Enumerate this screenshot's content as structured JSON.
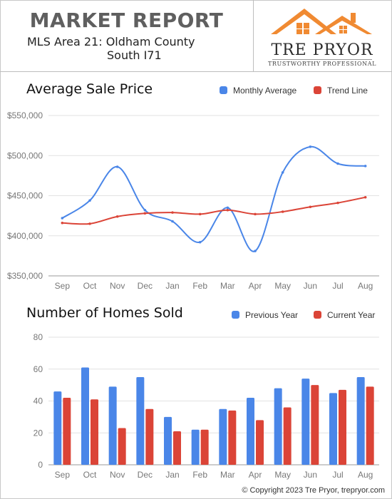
{
  "header": {
    "title": "MARKET REPORT",
    "area_line1": "MLS Area 21: Oldham County",
    "area_line2": "South I71"
  },
  "logo": {
    "name": "TRE PRYOR",
    "tagline": "TRUSTWORTHY PROFESSIONAL",
    "roof_color": "#f08a32"
  },
  "chart_data": [
    {
      "type": "line",
      "title": "Average Sale Price",
      "categories": [
        "Sep",
        "Oct",
        "Nov",
        "Dec",
        "Jan",
        "Feb",
        "Mar",
        "Apr",
        "May",
        "Jun",
        "Jul",
        "Aug"
      ],
      "series": [
        {
          "name": "Monthly Average",
          "color": "#4a86e8",
          "values": [
            422000,
            444000,
            486000,
            432000,
            418000,
            392000,
            435000,
            381000,
            479000,
            511000,
            490000,
            487000
          ]
        },
        {
          "name": "Trend Line",
          "color": "#db4437",
          "values": [
            416000,
            415000,
            424000,
            428000,
            429000,
            427000,
            432000,
            427000,
            430000,
            436000,
            441000,
            448000
          ]
        }
      ],
      "ylim": [
        350000,
        550000
      ],
      "y_ticks": [
        350000,
        400000,
        450000,
        500000,
        550000
      ],
      "y_tick_labels": [
        "$350,000",
        "$400,000",
        "$450,000",
        "$500,000",
        "$550,000"
      ],
      "grid": true,
      "legend_position": "top-right"
    },
    {
      "type": "bar",
      "title": "Number of Homes Sold",
      "categories": [
        "Sep",
        "Oct",
        "Nov",
        "Dec",
        "Jan",
        "Feb",
        "Mar",
        "Apr",
        "May",
        "Jun",
        "Jul",
        "Aug"
      ],
      "series": [
        {
          "name": "Previous Year",
          "color": "#4a86e8",
          "values": [
            46,
            61,
            49,
            55,
            30,
            22,
            35,
            42,
            48,
            54,
            45,
            55
          ]
        },
        {
          "name": "Current Year",
          "color": "#db4437",
          "values": [
            42,
            41,
            23,
            35,
            21,
            22,
            34,
            28,
            36,
            50,
            47,
            49
          ]
        }
      ],
      "ylim": [
        0,
        80
      ],
      "y_ticks": [
        0,
        20,
        40,
        60,
        80
      ],
      "y_tick_labels": [
        "0",
        "20",
        "40",
        "60",
        "80"
      ],
      "grid": true,
      "legend_position": "top-right"
    }
  ],
  "footer": {
    "copyright": "© Copyright 2023 Tre Pryor, trepryor.com"
  }
}
